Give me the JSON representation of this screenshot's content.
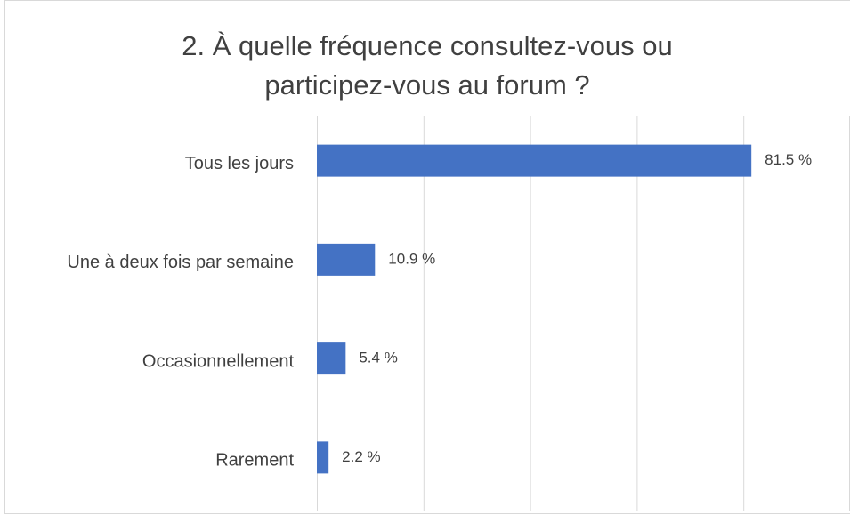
{
  "chart_data": {
    "type": "bar",
    "orientation": "horizontal",
    "title": "2. À quelle fréquence consultez-vous ou participez-vous au forum ?",
    "categories": [
      "Tous les jours",
      "Une à deux fois par semaine",
      "Occasionnellement",
      "Rarement"
    ],
    "values": [
      81.5,
      10.9,
      5.4,
      2.2
    ],
    "value_labels": [
      "81.5 %",
      "10.9 %",
      "5.4 %",
      "2.2 %"
    ],
    "color": "#4472c4",
    "xlim": [
      0,
      100
    ],
    "xticks": [
      0,
      20,
      40,
      60,
      80,
      100
    ],
    "grid": true
  }
}
